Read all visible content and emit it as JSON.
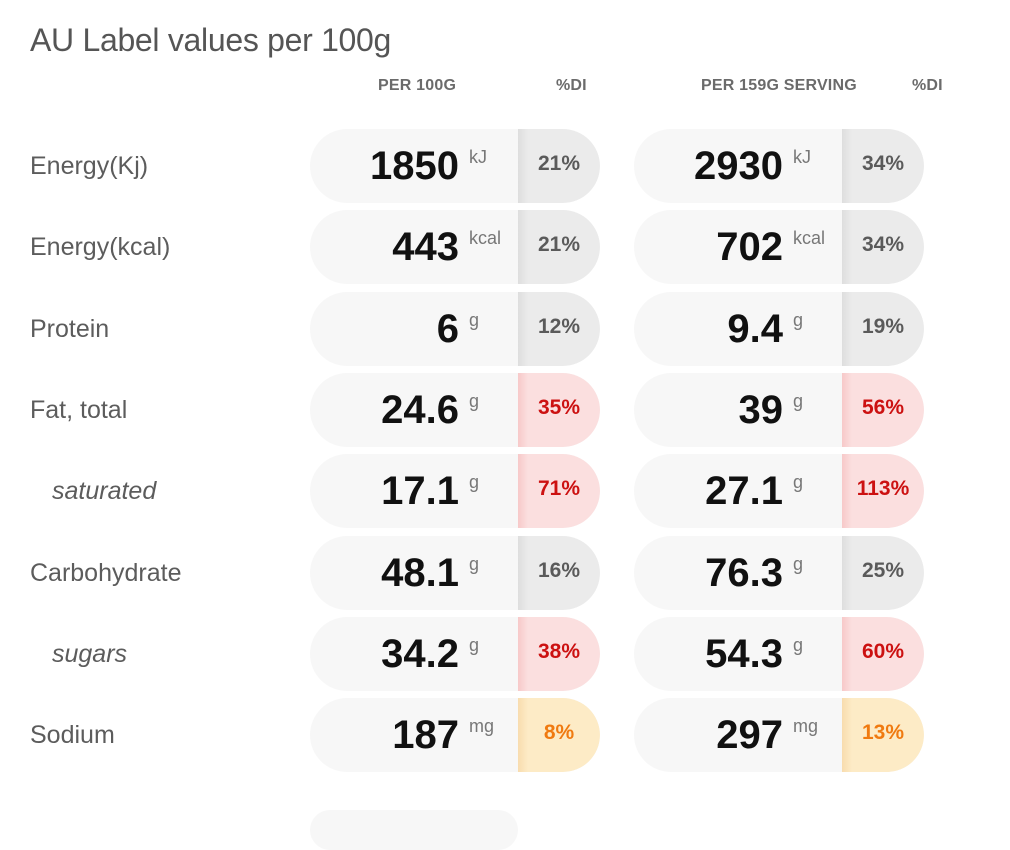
{
  "title": "AU Label values per 100g",
  "headers": {
    "per100": "PER 100G",
    "di1": "%DI",
    "perServing": "PER 159G SERVING",
    "di2": "%DI"
  },
  "rows": [
    {
      "label": "Energy(Kj)",
      "sub": false,
      "per100": {
        "value": "1850",
        "unit": "kJ",
        "di": "21%",
        "level": "grey"
      },
      "serving": {
        "value": "2930",
        "unit": "kJ",
        "di": "34%",
        "level": "grey"
      }
    },
    {
      "label": "Energy(kcal)",
      "sub": false,
      "per100": {
        "value": "443",
        "unit": "kcal",
        "di": "21%",
        "level": "grey"
      },
      "serving": {
        "value": "702",
        "unit": "kcal",
        "di": "34%",
        "level": "grey"
      }
    },
    {
      "label": "Protein",
      "sub": false,
      "per100": {
        "value": "6",
        "unit": "g",
        "di": "12%",
        "level": "grey"
      },
      "serving": {
        "value": "9.4",
        "unit": "g",
        "di": "19%",
        "level": "grey"
      }
    },
    {
      "label": "Fat, total",
      "sub": false,
      "per100": {
        "value": "24.6",
        "unit": "g",
        "di": "35%",
        "level": "red"
      },
      "serving": {
        "value": "39",
        "unit": "g",
        "di": "56%",
        "level": "red"
      }
    },
    {
      "label": "saturated",
      "sub": true,
      "per100": {
        "value": "17.1",
        "unit": "g",
        "di": "71%",
        "level": "red"
      },
      "serving": {
        "value": "27.1",
        "unit": "g",
        "di": "113%",
        "level": "red"
      }
    },
    {
      "label": "Carbohydrate",
      "sub": false,
      "per100": {
        "value": "48.1",
        "unit": "g",
        "di": "16%",
        "level": "grey"
      },
      "serving": {
        "value": "76.3",
        "unit": "g",
        "di": "25%",
        "level": "grey"
      }
    },
    {
      "label": "sugars",
      "sub": true,
      "per100": {
        "value": "34.2",
        "unit": "g",
        "di": "38%",
        "level": "red"
      },
      "serving": {
        "value": "54.3",
        "unit": "g",
        "di": "60%",
        "level": "red"
      }
    },
    {
      "label": "Sodium",
      "sub": false,
      "per100": {
        "value": "187",
        "unit": "mg",
        "di": "8%",
        "level": "orange"
      },
      "serving": {
        "value": "297",
        "unit": "mg",
        "di": "13%",
        "level": "orange"
      }
    }
  ],
  "colors": {
    "grey": "#5a5a5a",
    "red": "#cc1111",
    "orange": "#f07a10"
  }
}
